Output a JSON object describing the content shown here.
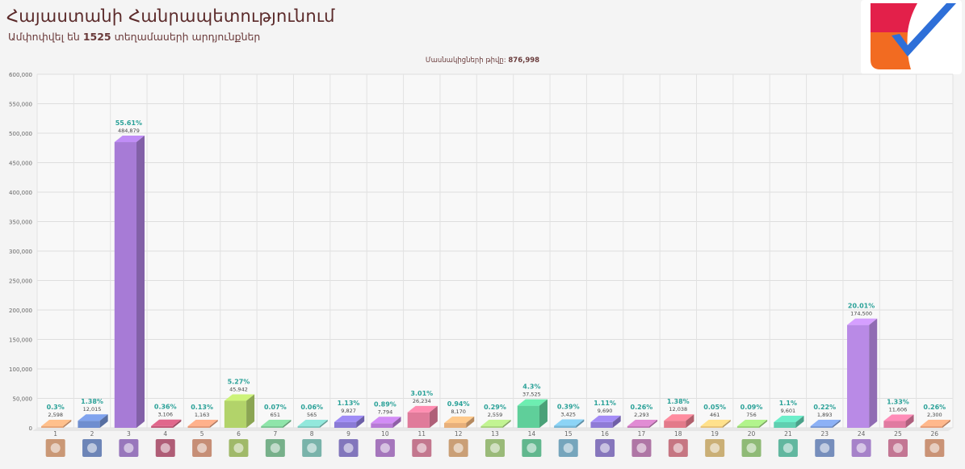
{
  "header": {
    "title": "Հայաստանի Հանրապետությունում",
    "subtitle_pre": "Ամփոփվել են",
    "subtitle_num": "1525",
    "subtitle_post": "տեղամասերի արդյունքներ"
  },
  "counted": {
    "label": "Մասնակիցների թիվը:",
    "value": "876,998"
  },
  "logo": {
    "icon": "checkmark-logo-icon",
    "colors": [
      "#e3204a",
      "#f26b21",
      "#2e6fd8"
    ]
  },
  "chart_data": {
    "type": "bar",
    "ylim": [
      0,
      600000
    ],
    "yticks": [
      "0",
      "50,000",
      "100,000",
      "150,000",
      "200,000",
      "250,000",
      "300,000",
      "350,000",
      "400,000",
      "450,000",
      "500,000",
      "550,000",
      "600,000"
    ],
    "grid": true,
    "categories": [
      "1",
      "2",
      "3",
      "4",
      "5",
      "6",
      "7",
      "8",
      "9",
      "10",
      "11",
      "12",
      "13",
      "14",
      "15",
      "16",
      "17",
      "18",
      "19",
      "20",
      "21",
      "23",
      "24",
      "25",
      "26"
    ],
    "values": [
      2598,
      12015,
      484879,
      3106,
      1163,
      45942,
      651,
      565,
      9827,
      7794,
      26234,
      8170,
      2559,
      37525,
      3425,
      9690,
      2293,
      12038,
      461,
      756,
      9601,
      1893,
      174500,
      11606,
      2300
    ],
    "value_labels": [
      "2,598",
      "12,015",
      "484,879",
      "3,106",
      "1,163",
      "45,942",
      "651",
      "565",
      "9,827",
      "7,794",
      "26,234",
      "8,170",
      "2,559",
      "37,525",
      "3,425",
      "9,690",
      "2,293",
      "12,038",
      "461",
      "756",
      "9,601",
      "1,893",
      "174,500",
      "11,606",
      "2,300"
    ],
    "percent_labels": [
      "0.3%",
      "1.38%",
      "55.61%",
      "0.36%",
      "0.13%",
      "5.27%",
      "0.07%",
      "0.06%",
      "1.13%",
      "0.89%",
      "3.01%",
      "0.94%",
      "0.29%",
      "4.3%",
      "0.39%",
      "1.11%",
      "0.26%",
      "1.38%",
      "0.05%",
      "0.09%",
      "1.1%",
      "0.22%",
      "20.01%",
      "1.33%",
      "0.26%"
    ],
    "colors": [
      "#e8a77a",
      "#6f8ecf",
      "#a77bd6",
      "#c45a7a",
      "#e39a7a",
      "#b2d36a",
      "#7cc794",
      "#7fcabf",
      "#8a7ad6",
      "#b77ad6",
      "#e07b9a",
      "#e8b07a",
      "#a9d47f",
      "#5fcf9a",
      "#7ab8d6",
      "#8f7ad6",
      "#c47ab8",
      "#e37a8a",
      "#e8c47a",
      "#9bd47a",
      "#5fcfb0",
      "#7a9ad6",
      "#b98ae6",
      "#e07aa0",
      "#e8a07a"
    ]
  }
}
